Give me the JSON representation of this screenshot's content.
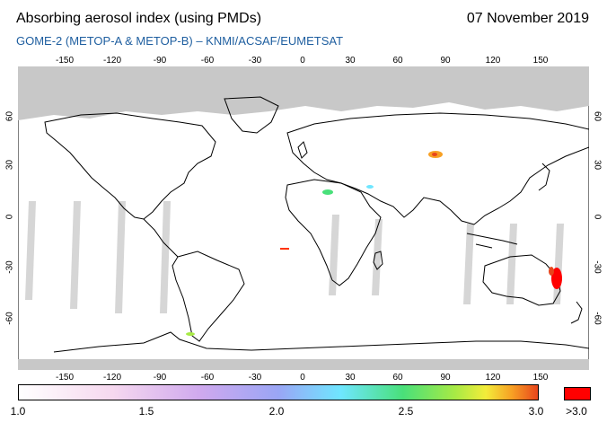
{
  "header": {
    "title": "Absorbing aerosol index (using PMDs)",
    "date": "07 November 2019",
    "subtitle": "GOME-2 (METOP-A & METOP-B)  –  KNMI/ACSAF/EUMETSAT"
  },
  "map": {
    "lon_ticks": [
      "-150",
      "-120",
      "-90",
      "-60",
      "-30",
      "0",
      "30",
      "60",
      "90",
      "120",
      "150"
    ],
    "lat_ticks": [
      "60",
      "30",
      "0",
      "-30",
      "-60"
    ],
    "lon_range": [
      -180,
      180
    ],
    "lat_range": [
      -90,
      90
    ],
    "no_data_color": "#c8c8c8",
    "aerosol_plumes": [
      {
        "region": "Southeast Australia",
        "lon": 151,
        "lat": -36,
        "value": ">3.0",
        "color": "#ff0000"
      },
      {
        "region": "North India",
        "lon": 82,
        "lat": 30,
        "value": "2.8",
        "color": "#e8451c"
      },
      {
        "region": "Sahel",
        "lon": 15,
        "lat": 18,
        "value": "2.2",
        "color": "#49e07a"
      },
      {
        "region": "Saudi Arabia",
        "lon": 43,
        "lat": 22,
        "value": "2.0",
        "color": "#6fe6ff"
      },
      {
        "region": "South Atlantic",
        "lon": -10,
        "lat": -20,
        "value": "2.9",
        "color": "#ff3300"
      }
    ]
  },
  "colorbar": {
    "labels": [
      "1.0",
      "1.5",
      "2.0",
      "2.5",
      "3.0"
    ],
    "over_label": ">3.0",
    "min": 1.0,
    "max": 3.0,
    "colors": [
      "#ffffff",
      "#f6d8ef",
      "#cfa9ee",
      "#9aa6f5",
      "#6fe6ff",
      "#49e07a",
      "#a7ea45",
      "#f3ec3a",
      "#f7a024",
      "#e8451c"
    ],
    "over_color": "#ff0000"
  }
}
